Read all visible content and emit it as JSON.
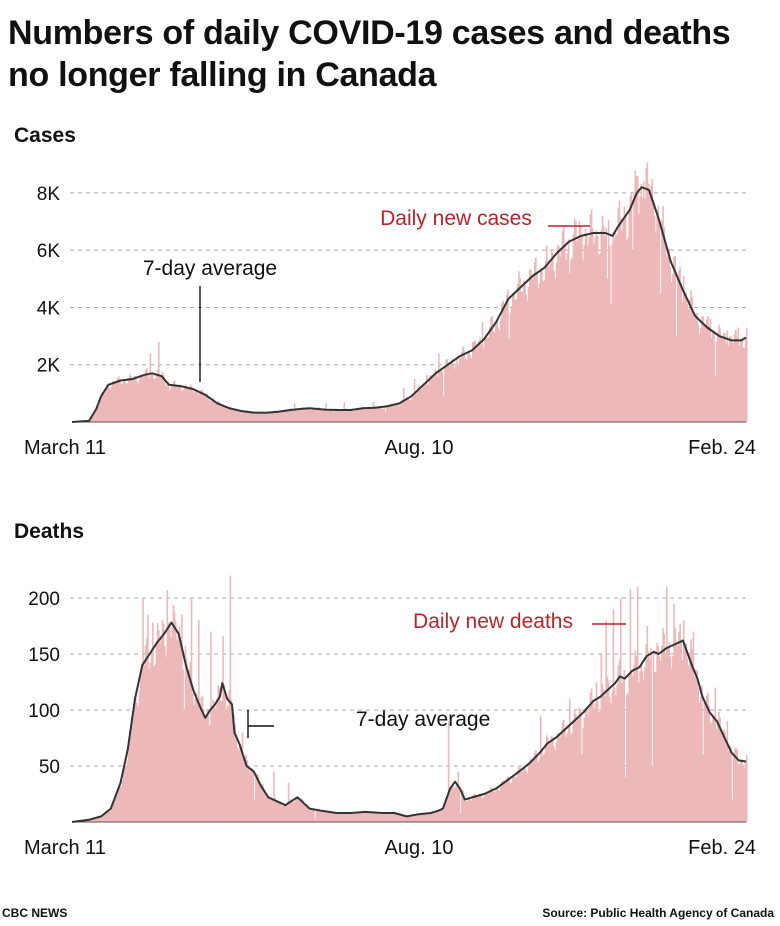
{
  "title": "Numbers of daily COVID-19 cases and deaths no longer falling in Canada",
  "source": "Source: Public Health Agency of Canada",
  "publisher": "CBC NEWS",
  "colors": {
    "bars": "#ecb8b9",
    "line": "#333333",
    "annotation_red": "#b5262b",
    "grid": "#aaaaaa"
  },
  "chart_data": [
    {
      "type": "bar",
      "section_label": "Cases",
      "x_tick_labels": [
        "March 11",
        "Aug. 10",
        "Feb. 24"
      ],
      "y_tick_labels": [
        "2K",
        "4K",
        "6K",
        "8K"
      ],
      "y_ticks": [
        2000,
        4000,
        6000,
        8000
      ],
      "ylim": [
        0,
        8800
      ],
      "series_annotations": {
        "bars": "Daily new cases",
        "line": "7-day average"
      },
      "avg_points": [
        [
          0,
          0
        ],
        [
          14,
          40
        ],
        [
          20,
          450
        ],
        [
          24,
          900
        ],
        [
          30,
          1300
        ],
        [
          40,
          1450
        ],
        [
          50,
          1500
        ],
        [
          60,
          1650
        ],
        [
          66,
          1700
        ],
        [
          74,
          1600
        ],
        [
          80,
          1300
        ],
        [
          90,
          1250
        ],
        [
          100,
          1150
        ],
        [
          110,
          950
        ],
        [
          120,
          650
        ],
        [
          130,
          480
        ],
        [
          140,
          380
        ],
        [
          150,
          330
        ],
        [
          160,
          320
        ],
        [
          170,
          360
        ],
        [
          180,
          420
        ],
        [
          190,
          460
        ],
        [
          196,
          480
        ],
        [
          210,
          430
        ],
        [
          220,
          420
        ],
        [
          230,
          420
        ],
        [
          240,
          480
        ],
        [
          250,
          500
        ],
        [
          260,
          550
        ],
        [
          270,
          650
        ],
        [
          280,
          900
        ],
        [
          290,
          1300
        ],
        [
          300,
          1700
        ],
        [
          310,
          2000
        ],
        [
          320,
          2300
        ],
        [
          330,
          2500
        ],
        [
          340,
          2900
        ],
        [
          350,
          3500
        ],
        [
          360,
          4300
        ],
        [
          370,
          4700
        ],
        [
          380,
          5100
        ],
        [
          390,
          5400
        ],
        [
          400,
          5900
        ],
        [
          410,
          6300
        ],
        [
          420,
          6500
        ],
        [
          430,
          6600
        ],
        [
          440,
          6600
        ],
        [
          446,
          6500
        ],
        [
          450,
          6800
        ],
        [
          460,
          7400
        ],
        [
          466,
          8000
        ],
        [
          470,
          8200
        ],
        [
          476,
          8100
        ],
        [
          484,
          7100
        ],
        [
          494,
          5600
        ],
        [
          504,
          4600
        ],
        [
          514,
          3700
        ],
        [
          524,
          3300
        ],
        [
          534,
          3000
        ],
        [
          544,
          2850
        ],
        [
          552,
          2850
        ],
        [
          556,
          2950
        ]
      ],
      "bar_spikes": [
        [
          64,
          2400
        ],
        [
          71,
          2800
        ],
        [
          183,
          650
        ],
        [
          209,
          650
        ],
        [
          224,
          700
        ],
        [
          248,
          700
        ],
        [
          273,
          1200
        ],
        [
          282,
          1500
        ],
        [
          292,
          1650
        ],
        [
          302,
          2400
        ],
        [
          318,
          2000
        ],
        [
          330,
          2800
        ],
        [
          338,
          3500
        ],
        [
          346,
          3700
        ],
        [
          364,
          4500
        ],
        [
          392,
          5600
        ],
        [
          415,
          7000
        ],
        [
          420,
          6500
        ],
        [
          432,
          6700
        ],
        [
          441,
          5000
        ],
        [
          448,
          6600
        ],
        [
          456,
          7200
        ],
        [
          461,
          8000
        ],
        [
          466,
          8600
        ],
        [
          471,
          8400
        ],
        [
          480,
          7200
        ],
        [
          488,
          6800
        ],
        [
          504,
          5100
        ],
        [
          526,
          3600
        ],
        [
          540,
          3200
        ],
        [
          549,
          3300
        ]
      ],
      "bar_dips": [
        [
          80,
          1100
        ],
        [
          215,
          350
        ],
        [
          258,
          380
        ],
        [
          306,
          900
        ],
        [
          360,
          2900
        ],
        [
          410,
          5200
        ],
        [
          444,
          4100
        ],
        [
          462,
          6000
        ],
        [
          485,
          4500
        ],
        [
          498,
          3000
        ],
        [
          530,
          1600
        ]
      ]
    },
    {
      "type": "bar",
      "section_label": "Deaths",
      "x_tick_labels": [
        "March 11",
        "Aug. 10",
        "Feb. 24"
      ],
      "y_tick_labels": [
        "50",
        "100",
        "150",
        "200"
      ],
      "y_ticks": [
        50,
        100,
        150,
        200
      ],
      "ylim": [
        0,
        225
      ],
      "series_annotations": {
        "bars": "Daily new deaths",
        "line": "7-day average"
      },
      "avg_points": [
        [
          0,
          0
        ],
        [
          14,
          2
        ],
        [
          24,
          5
        ],
        [
          32,
          12
        ],
        [
          40,
          35
        ],
        [
          46,
          65
        ],
        [
          52,
          110
        ],
        [
          58,
          140
        ],
        [
          64,
          150
        ],
        [
          70,
          160
        ],
        [
          76,
          168
        ],
        [
          82,
          178
        ],
        [
          88,
          168
        ],
        [
          94,
          140
        ],
        [
          100,
          118
        ],
        [
          106,
          102
        ],
        [
          110,
          93
        ],
        [
          114,
          100
        ],
        [
          118,
          105
        ],
        [
          122,
          112
        ],
        [
          124,
          124
        ],
        [
          128,
          110
        ],
        [
          132,
          105
        ],
        [
          134,
          80
        ],
        [
          138,
          70
        ],
        [
          144,
          50
        ],
        [
          150,
          45
        ],
        [
          156,
          32
        ],
        [
          162,
          22
        ],
        [
          170,
          18
        ],
        [
          176,
          15
        ],
        [
          180,
          18
        ],
        [
          186,
          22
        ],
        [
          190,
          18
        ],
        [
          196,
          12
        ],
        [
          206,
          10
        ],
        [
          218,
          8
        ],
        [
          230,
          8
        ],
        [
          242,
          9
        ],
        [
          256,
          8
        ],
        [
          266,
          8
        ],
        [
          276,
          5
        ],
        [
          286,
          7
        ],
        [
          296,
          8
        ],
        [
          302,
          10
        ],
        [
          306,
          12
        ],
        [
          312,
          30
        ],
        [
          316,
          36
        ],
        [
          320,
          30
        ],
        [
          324,
          20
        ],
        [
          330,
          22
        ],
        [
          340,
          25
        ],
        [
          350,
          30
        ],
        [
          360,
          38
        ],
        [
          370,
          46
        ],
        [
          378,
          53
        ],
        [
          386,
          62
        ],
        [
          392,
          70
        ],
        [
          400,
          76
        ],
        [
          408,
          84
        ],
        [
          416,
          92
        ],
        [
          422,
          98
        ],
        [
          430,
          108
        ],
        [
          436,
          112
        ],
        [
          442,
          118
        ],
        [
          448,
          124
        ],
        [
          452,
          130
        ],
        [
          456,
          128
        ],
        [
          462,
          135
        ],
        [
          468,
          138
        ],
        [
          474,
          148
        ],
        [
          480,
          152
        ],
        [
          484,
          150
        ],
        [
          490,
          155
        ],
        [
          496,
          158
        ],
        [
          500,
          160
        ],
        [
          504,
          162
        ],
        [
          508,
          150
        ],
        [
          512,
          138
        ],
        [
          516,
          128
        ],
        [
          520,
          112
        ],
        [
          526,
          98
        ],
        [
          532,
          90
        ],
        [
          538,
          76
        ],
        [
          544,
          62
        ],
        [
          550,
          55
        ],
        [
          556,
          54
        ]
      ],
      "bar_spikes": [
        [
          58,
          200
        ],
        [
          62,
          185
        ],
        [
          66,
          178
        ],
        [
          78,
          207
        ],
        [
          84,
          188
        ],
        [
          90,
          185
        ],
        [
          98,
          200
        ],
        [
          104,
          180
        ],
        [
          114,
          170
        ],
        [
          124,
          166
        ],
        [
          130,
          220
        ],
        [
          140,
          80
        ],
        [
          150,
          90
        ],
        [
          166,
          45
        ],
        [
          178,
          35
        ],
        [
          310,
          90
        ],
        [
          318,
          45
        ],
        [
          386,
          95
        ],
        [
          410,
          110
        ],
        [
          420,
          120
        ],
        [
          432,
          125
        ],
        [
          436,
          150
        ],
        [
          440,
          180
        ],
        [
          446,
          190
        ],
        [
          452,
          200
        ],
        [
          460,
          208
        ],
        [
          466,
          210
        ],
        [
          474,
          175
        ],
        [
          482,
          160
        ],
        [
          490,
          210
        ],
        [
          496,
          195
        ],
        [
          504,
          180
        ],
        [
          512,
          170
        ],
        [
          530,
          120
        ],
        [
          540,
          90
        ],
        [
          548,
          65
        ]
      ],
      "bar_dips": [
        [
          92,
          100
        ],
        [
          150,
          20
        ],
        [
          200,
          3
        ],
        [
          320,
          8
        ],
        [
          420,
          60
        ],
        [
          456,
          40
        ],
        [
          478,
          50
        ],
        [
          520,
          60
        ],
        [
          544,
          20
        ]
      ]
    }
  ]
}
